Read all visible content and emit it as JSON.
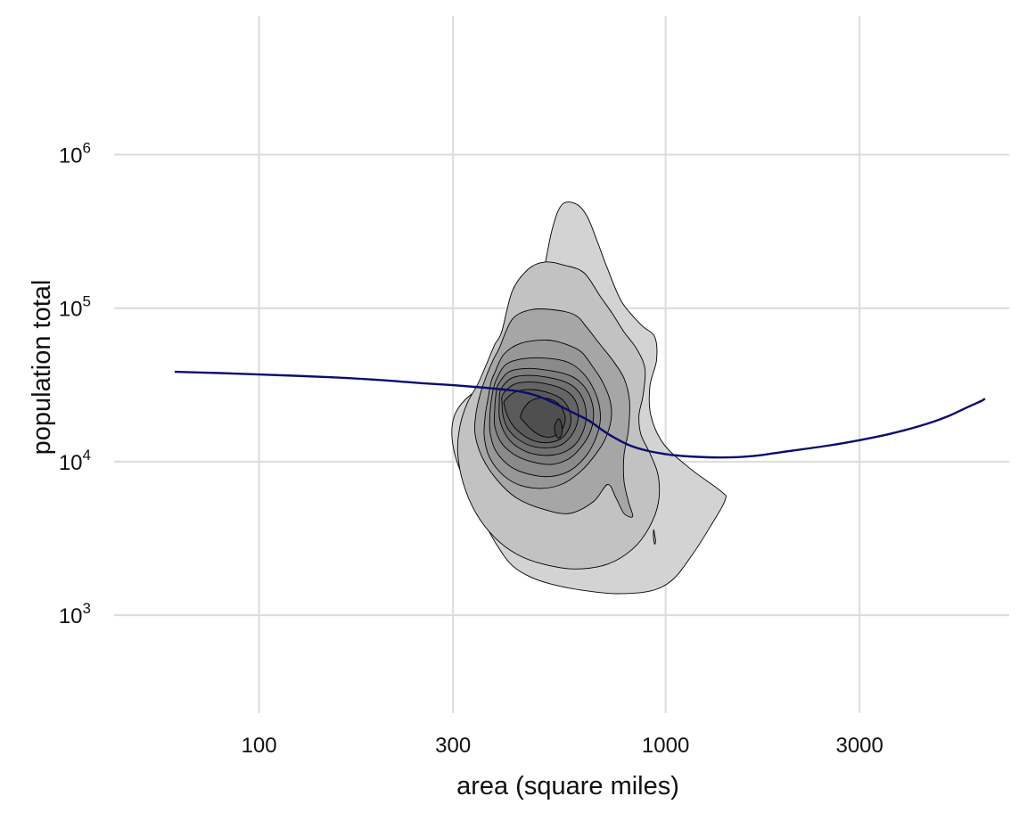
{
  "chart_data": {
    "type": "density_contour_with_smooth",
    "xlabel": "area (square miles)",
    "ylabel": "population total",
    "x_scale": "log10",
    "y_scale": "log10",
    "xlim": [
      44,
      7000
    ],
    "ylim": [
      230,
      8000000
    ],
    "x_ticks": [
      {
        "value": 100,
        "label": "100"
      },
      {
        "value": 300,
        "label": "300"
      },
      {
        "value": 1000,
        "label": "1000"
      },
      {
        "value": 3000,
        "label": "3000"
      }
    ],
    "y_ticks": [
      {
        "value": 1000,
        "base": "10",
        "exp": "3"
      },
      {
        "value": 10000,
        "base": "10",
        "exp": "4"
      },
      {
        "value": 100000,
        "base": "10",
        "exp": "5"
      },
      {
        "value": 1000000,
        "base": "10",
        "exp": "6"
      }
    ],
    "grid": true,
    "legend": "none",
    "contour_fill_colors": [
      "#d3d3d3",
      "#c2c2c2",
      "#a6a6a6",
      "#979797",
      "#8a8a8a",
      "#7d7d7d",
      "#717171",
      "#656565",
      "#5a5a5a",
      "#4f4f4f",
      "#454545"
    ],
    "contour_levels": [
      {
        "level": 1,
        "points": [
          [
            430,
            42000
          ],
          [
            455,
            70000
          ],
          [
            495,
            150000
          ],
          [
            525,
            320000
          ],
          [
            555,
            470000
          ],
          [
            600,
            480000
          ],
          [
            640,
            400000
          ],
          [
            680,
            270000
          ],
          [
            720,
            180000
          ],
          [
            780,
            110000
          ],
          [
            870,
            78000
          ],
          [
            940,
            65000
          ],
          [
            950,
            46000
          ],
          [
            915,
            31000
          ],
          [
            920,
            20000
          ],
          [
            990,
            13000
          ],
          [
            1150,
            9000
          ],
          [
            1370,
            6400
          ],
          [
            1400,
            5600
          ],
          [
            1290,
            3800
          ],
          [
            1160,
            2450
          ],
          [
            1040,
            1700
          ],
          [
            920,
            1440
          ],
          [
            760,
            1380
          ],
          [
            640,
            1440
          ],
          [
            540,
            1560
          ],
          [
            470,
            1750
          ],
          [
            420,
            2100
          ],
          [
            385,
            2850
          ],
          [
            355,
            4200
          ],
          [
            328,
            6500
          ],
          [
            305,
            10500
          ],
          [
            298,
            15500
          ],
          [
            305,
            21000
          ],
          [
            330,
            27000
          ],
          [
            370,
            32000
          ],
          [
            405,
            36000
          ],
          [
            430,
            42000
          ]
        ]
      },
      {
        "level": 2,
        "points": [
          [
            395,
            70000
          ],
          [
            420,
            130000
          ],
          [
            460,
            180000
          ],
          [
            505,
            200000
          ],
          [
            565,
            190000
          ],
          [
            630,
            170000
          ],
          [
            690,
            120000
          ],
          [
            740,
            92000
          ],
          [
            790,
            70000
          ],
          [
            850,
            54000
          ],
          [
            890,
            40000
          ],
          [
            880,
            27000
          ],
          [
            860,
            20000
          ],
          [
            870,
            15000
          ],
          [
            920,
            11000
          ],
          [
            960,
            8000
          ],
          [
            960,
            5400
          ],
          [
            910,
            3700
          ],
          [
            830,
            2700
          ],
          [
            720,
            2150
          ],
          [
            600,
            2000
          ],
          [
            500,
            2150
          ],
          [
            430,
            2500
          ],
          [
            380,
            3200
          ],
          [
            342,
            4600
          ],
          [
            318,
            7200
          ],
          [
            308,
            11500
          ],
          [
            312,
            17000
          ],
          [
            325,
            24000
          ],
          [
            345,
            32000
          ],
          [
            365,
            45000
          ],
          [
            380,
            58000
          ],
          [
            395,
            70000
          ]
        ]
      },
      {
        "level": 3,
        "points": [
          [
            390,
            55000
          ],
          [
            420,
            85000
          ],
          [
            470,
            98000
          ],
          [
            540,
            97000
          ],
          [
            600,
            90000
          ],
          [
            640,
            75000
          ],
          [
            690,
            58000
          ],
          [
            740,
            46000
          ],
          [
            790,
            35000
          ],
          [
            815,
            25000
          ],
          [
            810,
            16000
          ],
          [
            790,
            11000
          ],
          [
            790,
            7500
          ],
          [
            810,
            5500
          ],
          [
            830,
            4400
          ],
          [
            790,
            4600
          ],
          [
            755,
            5800
          ],
          [
            720,
            7100
          ],
          [
            665,
            5500
          ],
          [
            580,
            4600
          ],
          [
            500,
            4900
          ],
          [
            430,
            5800
          ],
          [
            385,
            7600
          ],
          [
            355,
            10500
          ],
          [
            340,
            15000
          ],
          [
            342,
            21000
          ],
          [
            352,
            29000
          ],
          [
            365,
            38000
          ],
          [
            378,
            47000
          ],
          [
            390,
            55000
          ]
        ]
      },
      {
        "level": 4,
        "points": [
          [
            380,
            38000
          ],
          [
            400,
            50000
          ],
          [
            440,
            59000
          ],
          [
            510,
            62000
          ],
          [
            570,
            58000
          ],
          [
            620,
            52000
          ],
          [
            660,
            42000
          ],
          [
            700,
            33000
          ],
          [
            730,
            25000
          ],
          [
            735,
            19000
          ],
          [
            710,
            14000
          ],
          [
            670,
            11000
          ],
          [
            620,
            8700
          ],
          [
            560,
            7200
          ],
          [
            500,
            6700
          ],
          [
            440,
            7000
          ],
          [
            400,
            8100
          ],
          [
            370,
            10500
          ],
          [
            358,
            14500
          ],
          [
            360,
            20000
          ],
          [
            367,
            27000
          ],
          [
            372,
            33000
          ],
          [
            380,
            38000
          ]
        ]
      },
      {
        "level": 5,
        "points": [
          [
            383,
            34000
          ],
          [
            405,
            43000
          ],
          [
            450,
            47000
          ],
          [
            520,
            47000
          ],
          [
            580,
            44000
          ],
          [
            625,
            38000
          ],
          [
            660,
            31000
          ],
          [
            685,
            24000
          ],
          [
            690,
            18000
          ],
          [
            668,
            13500
          ],
          [
            630,
            10500
          ],
          [
            580,
            8700
          ],
          [
            520,
            8000
          ],
          [
            460,
            8300
          ],
          [
            415,
            9300
          ],
          [
            382,
            11800
          ],
          [
            370,
            15500
          ],
          [
            370,
            21000
          ],
          [
            375,
            28000
          ],
          [
            383,
            34000
          ]
        ]
      },
      {
        "level": 6,
        "points": [
          [
            388,
            32000
          ],
          [
            412,
            38500
          ],
          [
            460,
            40500
          ],
          [
            525,
            39000
          ],
          [
            580,
            36500
          ],
          [
            620,
            32500
          ],
          [
            650,
            27000
          ],
          [
            665,
            21000
          ],
          [
            655,
            16000
          ],
          [
            625,
            12800
          ],
          [
            580,
            10500
          ],
          [
            525,
            9600
          ],
          [
            468,
            10000
          ],
          [
            425,
            11100
          ],
          [
            395,
            13200
          ],
          [
            380,
            17000
          ],
          [
            380,
            22500
          ],
          [
            383,
            28000
          ],
          [
            388,
            32000
          ]
        ]
      },
      {
        "level": 7,
        "points": [
          [
            393,
            29500
          ],
          [
            418,
            35000
          ],
          [
            462,
            36500
          ],
          [
            525,
            35000
          ],
          [
            575,
            32500
          ],
          [
            608,
            29000
          ],
          [
            630,
            24500
          ],
          [
            638,
            19500
          ],
          [
            625,
            15500
          ],
          [
            595,
            12700
          ],
          [
            550,
            11300
          ],
          [
            500,
            11000
          ],
          [
            455,
            11600
          ],
          [
            420,
            13200
          ],
          [
            400,
            15800
          ],
          [
            390,
            19500
          ],
          [
            390,
            24500
          ],
          [
            393,
            29500
          ]
        ]
      },
      {
        "level": 8,
        "points": [
          [
            398,
            27500
          ],
          [
            425,
            32000
          ],
          [
            470,
            33000
          ],
          [
            525,
            31500
          ],
          [
            568,
            29000
          ],
          [
            596,
            25700
          ],
          [
            610,
            21500
          ],
          [
            605,
            17500
          ],
          [
            583,
            14500
          ],
          [
            548,
            12700
          ],
          [
            505,
            12300
          ],
          [
            465,
            12700
          ],
          [
            432,
            14100
          ],
          [
            410,
            16300
          ],
          [
            399,
            19500
          ],
          [
            396,
            23500
          ],
          [
            398,
            27500
          ]
        ]
      },
      {
        "level": 9,
        "points": [
          [
            402,
            25000
          ],
          [
            428,
            28500
          ],
          [
            470,
            29500
          ],
          [
            518,
            28000
          ],
          [
            556,
            25500
          ],
          [
            578,
            22000
          ],
          [
            585,
            18500
          ],
          [
            574,
            15800
          ],
          [
            550,
            14000
          ],
          [
            512,
            13300
          ],
          [
            474,
            13700
          ],
          [
            445,
            15000
          ],
          [
            422,
            17100
          ],
          [
            408,
            20000
          ],
          [
            402,
            23000
          ],
          [
            402,
            25000
          ]
        ]
      },
      {
        "level": 10,
        "points": [
          [
            440,
            20000
          ],
          [
            462,
            24500
          ],
          [
            500,
            26000
          ],
          [
            538,
            24500
          ],
          [
            560,
            21500
          ],
          [
            566,
            18500
          ],
          [
            552,
            15800
          ],
          [
            525,
            14500
          ],
          [
            492,
            14800
          ],
          [
            468,
            16200
          ],
          [
            450,
            18000
          ],
          [
            440,
            20000
          ]
        ]
      },
      {
        "level": 11,
        "points": [
          [
            535,
            17500
          ],
          [
            545,
            19000
          ],
          [
            553,
            18000
          ],
          [
            557,
            16000
          ],
          [
            552,
            14600
          ],
          [
            543,
            14300
          ],
          [
            536,
            15200
          ],
          [
            533,
            16500
          ],
          [
            535,
            17500
          ]
        ]
      },
      {
        "level": 2,
        "points": [
          [
            935,
            3600
          ],
          [
            940,
            3320
          ],
          [
            945,
            3050
          ],
          [
            940,
            2900
          ],
          [
            935,
            3100
          ],
          [
            933,
            3350
          ],
          [
            935,
            3600
          ]
        ]
      }
    ],
    "smooth_line": {
      "color": "#0c0c6e",
      "points": [
        [
          62,
          38500
        ],
        [
          80,
          37800
        ],
        [
          100,
          37000
        ],
        [
          150,
          35500
        ],
        [
          200,
          34000
        ],
        [
          250,
          32500
        ],
        [
          300,
          31500
        ],
        [
          350,
          30500
        ],
        [
          400,
          29500
        ],
        [
          440,
          28600
        ],
        [
          480,
          27000
        ],
        [
          520,
          24800
        ],
        [
          560,
          22500
        ],
        [
          600,
          20500
        ],
        [
          650,
          18400
        ],
        [
          700,
          16000
        ],
        [
          760,
          14000
        ],
        [
          820,
          12700
        ],
        [
          900,
          11800
        ],
        [
          1000,
          11200
        ],
        [
          1100,
          10900
        ],
        [
          1200,
          10750
        ],
        [
          1350,
          10650
        ],
        [
          1500,
          10700
        ],
        [
          1700,
          11000
        ],
        [
          2000,
          11700
        ],
        [
          2500,
          12700
        ],
        [
          3000,
          13800
        ],
        [
          3500,
          15000
        ],
        [
          4000,
          16400
        ],
        [
          4500,
          18000
        ],
        [
          5000,
          20000
        ],
        [
          5500,
          22500
        ],
        [
          6000,
          25000
        ],
        [
          6100,
          25800
        ]
      ]
    }
  }
}
